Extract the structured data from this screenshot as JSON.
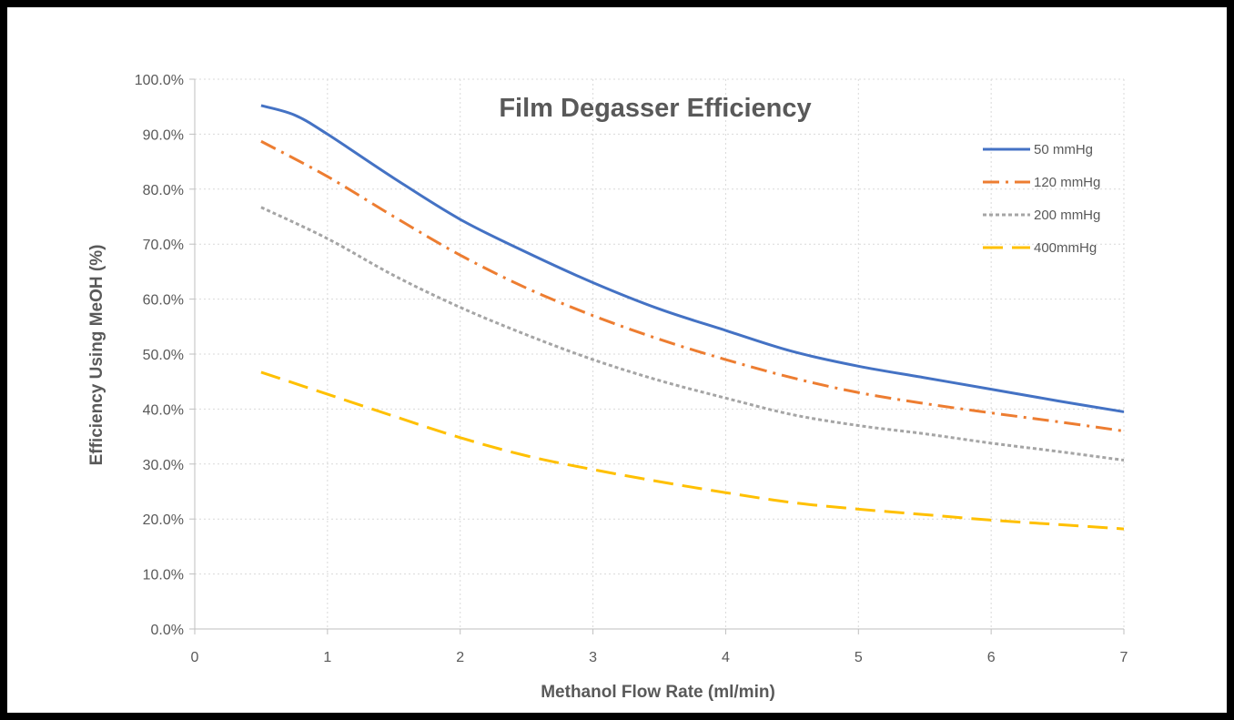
{
  "chart_data": {
    "type": "line",
    "title": "Film Degasser Efficiency",
    "xlabel": "Methanol Flow Rate (ml/min)",
    "ylabel": "Efficiency Using MeOH (%)",
    "xlim": [
      0,
      7
    ],
    "ylim": [
      0,
      1.0
    ],
    "x_ticks": [
      "0",
      "1",
      "2",
      "3",
      "4",
      "5",
      "6",
      "7"
    ],
    "y_ticks": [
      "0.0%",
      "10.0%",
      "20.0%",
      "30.0%",
      "40.0%",
      "50.0%",
      "60.0%",
      "70.0%",
      "80.0%",
      "90.0%",
      "100.0%"
    ],
    "grid": "dotted",
    "legend_position": "top-right",
    "series": [
      {
        "name": "50 mmHg",
        "color": "#4472C4",
        "dash": "solid",
        "x": [
          0.5,
          0.75,
          1,
          1.5,
          2,
          2.5,
          3,
          3.5,
          4,
          4.5,
          5,
          5.5,
          6,
          6.5,
          7
        ],
        "y": [
          0.952,
          0.935,
          0.9,
          0.82,
          0.745,
          0.685,
          0.63,
          0.582,
          0.543,
          0.505,
          0.478,
          0.457,
          0.436,
          0.415,
          0.395
        ]
      },
      {
        "name": "120 mmHg",
        "color": "#ED7D31",
        "dash": "dashdot",
        "x": [
          0.5,
          1,
          1.5,
          2,
          2.5,
          3,
          3.5,
          4,
          4.5,
          5,
          5.5,
          6,
          6.5,
          7
        ],
        "y": [
          0.887,
          0.823,
          0.75,
          0.68,
          0.62,
          0.57,
          0.527,
          0.49,
          0.457,
          0.43,
          0.41,
          0.393,
          0.377,
          0.36
        ]
      },
      {
        "name": "200 mmHg",
        "color": "#A5A5A5",
        "dash": "dotted",
        "x": [
          0.5,
          1,
          1.5,
          2,
          2.5,
          3,
          3.5,
          4,
          4.5,
          5,
          5.5,
          6,
          6.5,
          7
        ],
        "y": [
          0.767,
          0.71,
          0.643,
          0.585,
          0.535,
          0.49,
          0.452,
          0.42,
          0.39,
          0.37,
          0.355,
          0.338,
          0.323,
          0.307
        ]
      },
      {
        "name": "400mmHg",
        "color": "#FFC000",
        "dash": "dashed",
        "x": [
          0.5,
          1,
          1.5,
          2,
          2.5,
          3,
          3.5,
          4,
          4.5,
          5,
          5.5,
          6,
          6.5,
          7
        ],
        "y": [
          0.467,
          0.427,
          0.387,
          0.348,
          0.315,
          0.29,
          0.268,
          0.248,
          0.23,
          0.218,
          0.208,
          0.198,
          0.19,
          0.182
        ]
      }
    ]
  }
}
